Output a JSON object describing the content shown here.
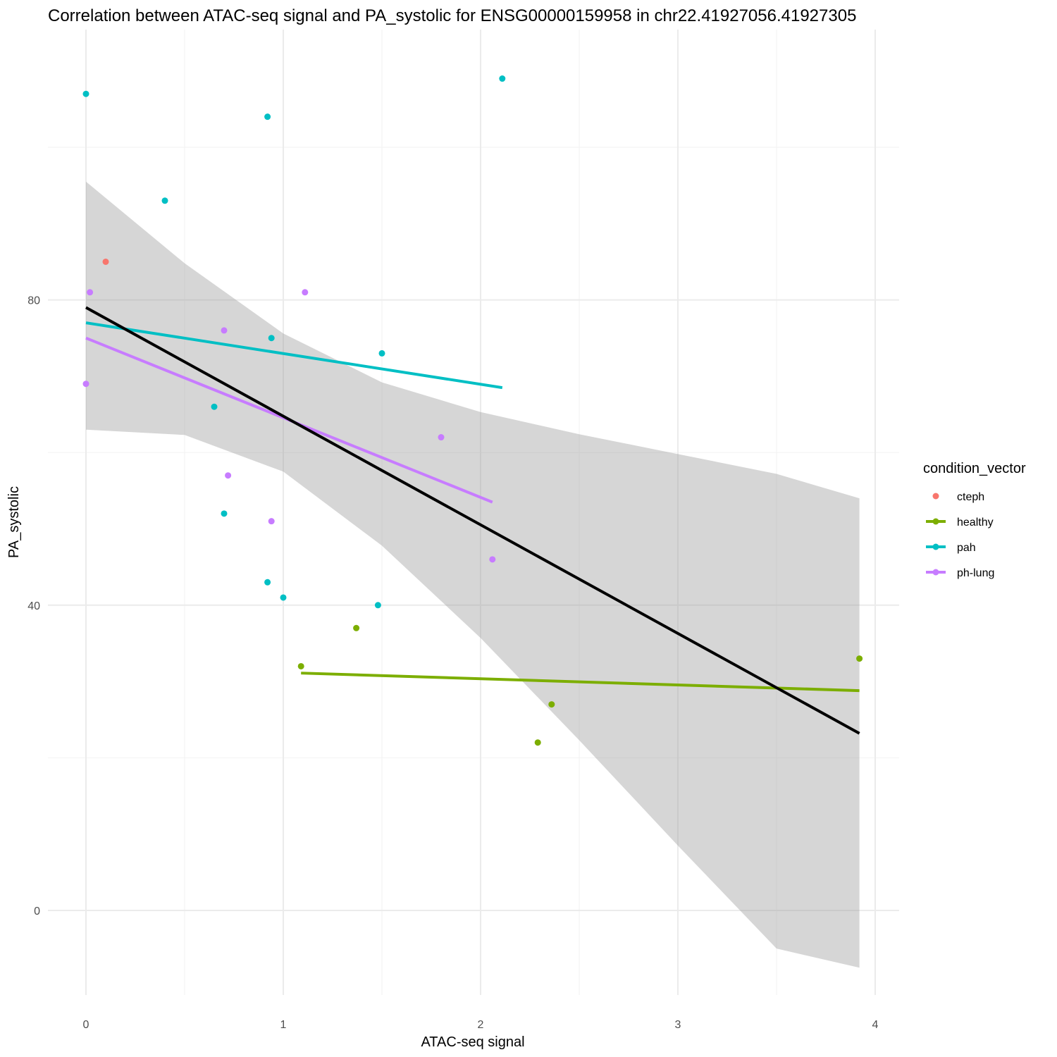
{
  "chart_data": {
    "type": "scatter",
    "title": "Correlation between ATAC-seq signal and PA_systolic for ENSG00000159958 in chr22.41927056.41927305",
    "xlabel": "ATAC-seq signal",
    "ylabel": "PA_systolic",
    "xlim": [
      -0.2,
      4.12
    ],
    "ylim": [
      -13,
      118
    ],
    "x_ticks": [
      0,
      1,
      2,
      3,
      4
    ],
    "y_ticks": [
      0,
      40,
      80
    ],
    "x_tick_labels": [
      "0",
      "1",
      "2",
      "3",
      "4"
    ],
    "y_tick_labels": [
      "0",
      "40",
      "80"
    ],
    "grid": true,
    "legend": {
      "title": "condition_vector",
      "position": "right",
      "entries": [
        "cteph",
        "healthy",
        "pah",
        "ph-lung"
      ]
    },
    "series": [
      {
        "name": "cteph",
        "color": "#F8766D",
        "points": [
          [
            0.1,
            85
          ]
        ]
      },
      {
        "name": "healthy",
        "color": "#7CAE00",
        "points": [
          [
            1.09,
            32
          ],
          [
            1.37,
            37
          ],
          [
            2.29,
            22
          ],
          [
            2.36,
            27
          ],
          [
            3.92,
            33
          ]
        ],
        "fit": [
          [
            1.09,
            31.1
          ],
          [
            3.92,
            28.8
          ]
        ]
      },
      {
        "name": "pah",
        "color": "#00BFC4",
        "points": [
          [
            0.0,
            107
          ],
          [
            0.4,
            93
          ],
          [
            0.92,
            104
          ],
          [
            2.11,
            109
          ],
          [
            0.7,
            52
          ],
          [
            0.92,
            43
          ],
          [
            1.0,
            41
          ],
          [
            1.48,
            40
          ],
          [
            1.5,
            73
          ],
          [
            0.65,
            66
          ],
          [
            0.94,
            75
          ]
        ],
        "fit": [
          [
            0.0,
            77
          ],
          [
            2.11,
            68.5
          ]
        ]
      },
      {
        "name": "ph-lung",
        "color": "#C77CFF",
        "points": [
          [
            0.02,
            81
          ],
          [
            0.0,
            69
          ],
          [
            0.7,
            76
          ],
          [
            1.11,
            81
          ],
          [
            0.72,
            57
          ],
          [
            0.94,
            51
          ],
          [
            1.8,
            62
          ],
          [
            2.06,
            46
          ]
        ],
        "fit": [
          [
            0.0,
            75
          ],
          [
            2.06,
            53.5
          ]
        ]
      }
    ],
    "overall_fit": {
      "color": "#000000",
      "line": [
        [
          0.0,
          79
        ],
        [
          3.92,
          23.2
        ]
      ],
      "band_color": "#999999",
      "band_upper": [
        [
          0.0,
          95.5
        ],
        [
          0.5,
          84.8
        ],
        [
          1.0,
          75.6
        ],
        [
          1.5,
          69.2
        ],
        [
          2.0,
          65.3
        ],
        [
          2.5,
          62.4
        ],
        [
          3.0,
          59.8
        ],
        [
          3.5,
          57.2
        ],
        [
          3.92,
          54.0
        ]
      ],
      "band_lower": [
        [
          0.0,
          63.0
        ],
        [
          0.5,
          62.3
        ],
        [
          1.0,
          57.5
        ],
        [
          1.5,
          47.8
        ],
        [
          2.0,
          35.7
        ],
        [
          2.5,
          22.3
        ],
        [
          3.0,
          8.5
        ],
        [
          3.5,
          -5.0
        ],
        [
          3.92,
          -7.5
        ]
      ]
    }
  }
}
